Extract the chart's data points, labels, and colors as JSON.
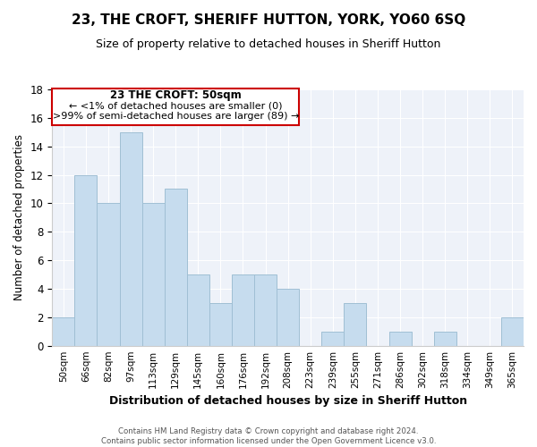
{
  "title": "23, THE CROFT, SHERIFF HUTTON, YORK, YO60 6SQ",
  "subtitle": "Size of property relative to detached houses in Sheriff Hutton",
  "xlabel": "Distribution of detached houses by size in Sheriff Hutton",
  "ylabel": "Number of detached properties",
  "bin_labels": [
    "50sqm",
    "66sqm",
    "82sqm",
    "97sqm",
    "113sqm",
    "129sqm",
    "145sqm",
    "160sqm",
    "176sqm",
    "192sqm",
    "208sqm",
    "223sqm",
    "239sqm",
    "255sqm",
    "271sqm",
    "286sqm",
    "302sqm",
    "318sqm",
    "334sqm",
    "349sqm",
    "365sqm"
  ],
  "values": [
    2,
    12,
    10,
    15,
    10,
    11,
    5,
    3,
    5,
    5,
    4,
    0,
    1,
    3,
    0,
    1,
    0,
    1,
    0,
    0,
    2
  ],
  "bar_color": "#c6dcee",
  "bar_edge_color": "#a0bfd4",
  "annotation_title": "23 THE CROFT: 50sqm",
  "annotation_line1": "← <1% of detached houses are smaller (0)",
  "annotation_line2": ">99% of semi-detached houses are larger (89) →",
  "ylim": [
    0,
    18
  ],
  "yticks": [
    0,
    2,
    4,
    6,
    8,
    10,
    12,
    14,
    16,
    18
  ],
  "footer_line1": "Contains HM Land Registry data © Crown copyright and database right 2024.",
  "footer_line2": "Contains public sector information licensed under the Open Government Licence v3.0.",
  "background_color": "#eef2f9",
  "grid_color": "#ffffff"
}
